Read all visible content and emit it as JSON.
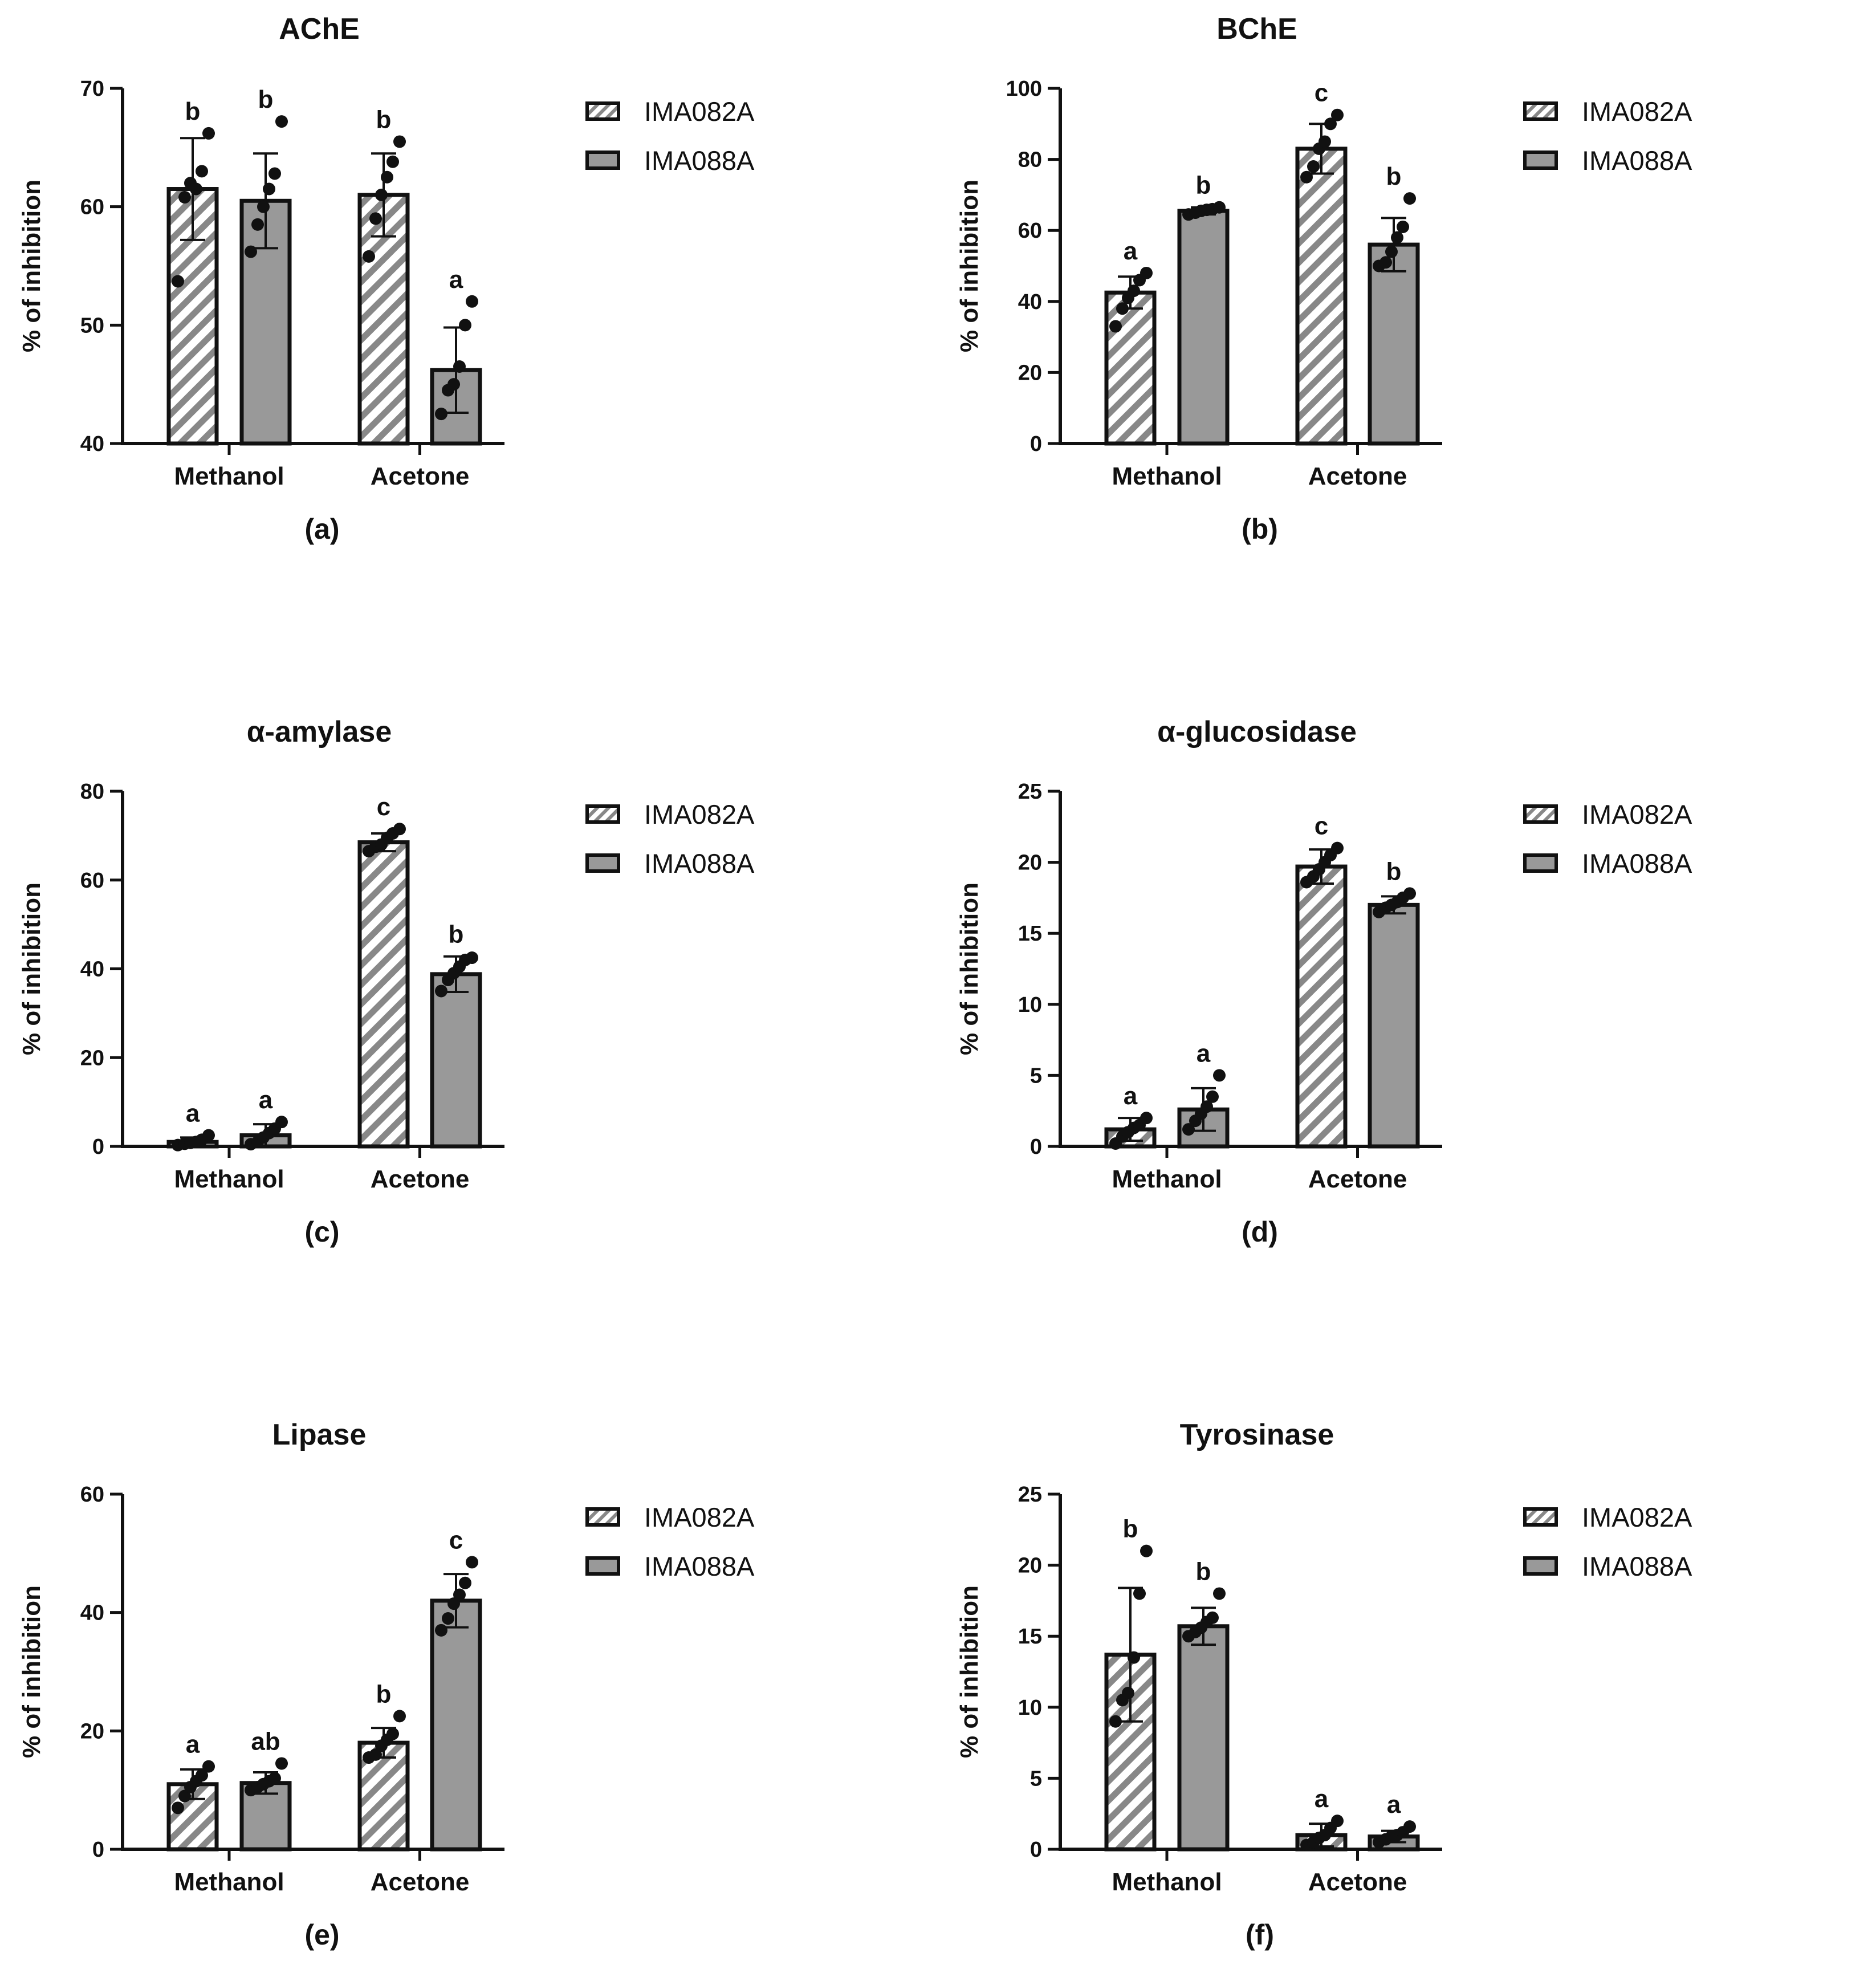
{
  "legend": [
    "IMA082A",
    "IMA088A"
  ],
  "colors": {
    "bar_fill": "#999999",
    "stroke": "#111111",
    "hatch": "#888888",
    "background": "#ffffff"
  },
  "chart_data": [
    {
      "type": "bar",
      "panel_label": "(a)",
      "title": "AChE",
      "categories": [
        "Methanol",
        "Acetone"
      ],
      "xlabel": "",
      "ylabel": "% of inhibition",
      "ylim": [
        40,
        70
      ],
      "yticks": [
        40,
        50,
        60,
        70
      ],
      "series": [
        {
          "name": "IMA082A",
          "values": [
            61.5,
            61.0
          ],
          "errors": [
            4.3,
            3.5
          ],
          "letters": [
            "b",
            "b"
          ],
          "points": [
            [
              53.7,
              60.8,
              62.0,
              61.5,
              63.0,
              66.2
            ],
            [
              55.8,
              59.0,
              61.0,
              62.5,
              63.8,
              65.5
            ]
          ]
        },
        {
          "name": "IMA088A",
          "values": [
            60.5,
            46.2
          ],
          "errors": [
            4.0,
            3.6
          ],
          "letters": [
            "b",
            "a"
          ],
          "points": [
            [
              56.2,
              58.5,
              60.0,
              61.5,
              62.8,
              67.2
            ],
            [
              42.5,
              44.5,
              45.0,
              46.5,
              50.0,
              52.0
            ]
          ]
        }
      ]
    },
    {
      "type": "bar",
      "panel_label": "(b)",
      "title": "BChE",
      "categories": [
        "Methanol",
        "Acetone"
      ],
      "xlabel": "",
      "ylabel": "% of inhibition",
      "ylim": [
        0,
        100
      ],
      "yticks": [
        0,
        20,
        40,
        60,
        80,
        100
      ],
      "series": [
        {
          "name": "IMA082A",
          "values": [
            42.5,
            83.0
          ],
          "errors": [
            4.5,
            7.0
          ],
          "letters": [
            "a",
            "c"
          ],
          "points": [
            [
              33.0,
              38.0,
              41.0,
              43.0,
              46.0,
              48.0
            ],
            [
              75.0,
              78.0,
              83.0,
              85.0,
              90.0,
              92.5
            ]
          ]
        },
        {
          "name": "IMA088A",
          "values": [
            65.5,
            56.0
          ],
          "errors": [
            1.0,
            7.5
          ],
          "letters": [
            "b",
            "b"
          ],
          "points": [
            [
              64.5,
              65.0,
              65.5,
              65.8,
              66.0,
              66.5
            ],
            [
              50.0,
              51.0,
              54.0,
              58.0,
              61.0,
              69.0
            ]
          ]
        }
      ]
    },
    {
      "type": "bar",
      "panel_label": "(c)",
      "title": "α-amylase",
      "categories": [
        "Methanol",
        "Acetone"
      ],
      "xlabel": "",
      "ylabel": "% of inhibition",
      "ylim": [
        0,
        80
      ],
      "yticks": [
        0,
        20,
        40,
        60,
        80
      ],
      "series": [
        {
          "name": "IMA082A",
          "values": [
            1.0,
            68.5
          ],
          "errors": [
            1.0,
            2.0
          ],
          "letters": [
            "a",
            "c"
          ],
          "points": [
            [
              0.3,
              0.6,
              0.8,
              1.0,
              1.5,
              2.5
            ],
            [
              66.5,
              67.5,
              68.0,
              69.5,
              70.5,
              71.5
            ]
          ]
        },
        {
          "name": "IMA088A",
          "values": [
            2.5,
            38.8
          ],
          "errors": [
            2.5,
            4.0
          ],
          "letters": [
            "a",
            "b"
          ],
          "points": [
            [
              0.5,
              1.0,
              2.0,
              3.0,
              4.0,
              5.5
            ],
            [
              35.0,
              37.5,
              39.0,
              40.5,
              42.0,
              42.5
            ]
          ]
        }
      ]
    },
    {
      "type": "bar",
      "panel_label": "(d)",
      "title": "α-glucosidase",
      "categories": [
        "Methanol",
        "Acetone"
      ],
      "xlabel": "",
      "ylabel": "% of inhibition",
      "ylim": [
        0,
        25
      ],
      "yticks": [
        0,
        5,
        10,
        15,
        20,
        25
      ],
      "series": [
        {
          "name": "IMA082A",
          "values": [
            1.2,
            19.7
          ],
          "errors": [
            0.8,
            1.2
          ],
          "letters": [
            "a",
            "c"
          ],
          "points": [
            [
              0.2,
              0.7,
              1.0,
              1.3,
              1.5,
              2.0
            ],
            [
              18.6,
              19.0,
              19.5,
              20.0,
              20.5,
              21.0
            ]
          ]
        },
        {
          "name": "IMA088A",
          "values": [
            2.6,
            17.0
          ],
          "errors": [
            1.5,
            0.6
          ],
          "letters": [
            "a",
            "b"
          ],
          "points": [
            [
              1.2,
              1.8,
              2.3,
              2.8,
              3.5,
              5.0
            ],
            [
              16.5,
              16.8,
              17.0,
              17.2,
              17.5,
              17.8
            ]
          ]
        }
      ]
    },
    {
      "type": "bar",
      "panel_label": "(e)",
      "title": "Lipase",
      "categories": [
        "Methanol",
        "Acetone"
      ],
      "xlabel": "",
      "ylabel": "% of inhibition",
      "ylim": [
        0,
        60
      ],
      "yticks": [
        0,
        20,
        40,
        60
      ],
      "series": [
        {
          "name": "IMA082A",
          "values": [
            11.0,
            18.0
          ],
          "errors": [
            2.5,
            2.5
          ],
          "letters": [
            "a",
            "b"
          ],
          "points": [
            [
              7.0,
              9.0,
              10.5,
              11.5,
              12.5,
              14.0
            ],
            [
              15.5,
              16.0,
              17.5,
              18.5,
              19.5,
              22.5
            ]
          ]
        },
        {
          "name": "IMA088A",
          "values": [
            11.2,
            42.0
          ],
          "errors": [
            1.8,
            4.5
          ],
          "letters": [
            "ab",
            "c"
          ],
          "points": [
            [
              10.0,
              10.5,
              11.0,
              11.5,
              12.0,
              14.5
            ],
            [
              37.0,
              39.0,
              41.5,
              43.0,
              45.0,
              48.5
            ]
          ]
        }
      ]
    },
    {
      "type": "bar",
      "panel_label": "(f)",
      "title": "Tyrosinase",
      "categories": [
        "Methanol",
        "Acetone"
      ],
      "xlabel": "",
      "ylabel": "% of inhibition",
      "ylim": [
        0,
        25
      ],
      "yticks": [
        0,
        5,
        10,
        15,
        20,
        25
      ],
      "series": [
        {
          "name": "IMA082A",
          "values": [
            13.7,
            1.0
          ],
          "errors": [
            4.7,
            0.8
          ],
          "letters": [
            "b",
            "a"
          ],
          "points": [
            [
              9.0,
              10.5,
              11.0,
              13.5,
              18.0,
              21.0
            ],
            [
              0.3,
              0.5,
              0.8,
              1.0,
              1.5,
              2.0
            ]
          ]
        },
        {
          "name": "IMA088A",
          "values": [
            15.7,
            0.9
          ],
          "errors": [
            1.3,
            0.4
          ],
          "letters": [
            "b",
            "a"
          ],
          "points": [
            [
              15.0,
              15.3,
              15.6,
              16.0,
              16.3,
              18.0
            ],
            [
              0.5,
              0.7,
              0.9,
              1.0,
              1.2,
              1.6
            ]
          ]
        }
      ]
    }
  ]
}
